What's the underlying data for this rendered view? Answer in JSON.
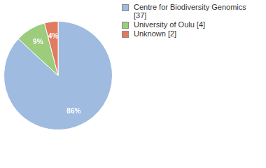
{
  "chart_data": {
    "type": "pie",
    "categories": [
      "Centre for Biodiversity Genomics [37]",
      "University of Oulu [4]",
      "Unknown [2]"
    ],
    "values": [
      86,
      9,
      4
    ],
    "value_labels": [
      "86%",
      "9%",
      "4%"
    ],
    "colors": [
      "#9fbbe0",
      "#9ccc7c",
      "#e07b5f"
    ],
    "data_labels": true,
    "legend": "top-right"
  }
}
